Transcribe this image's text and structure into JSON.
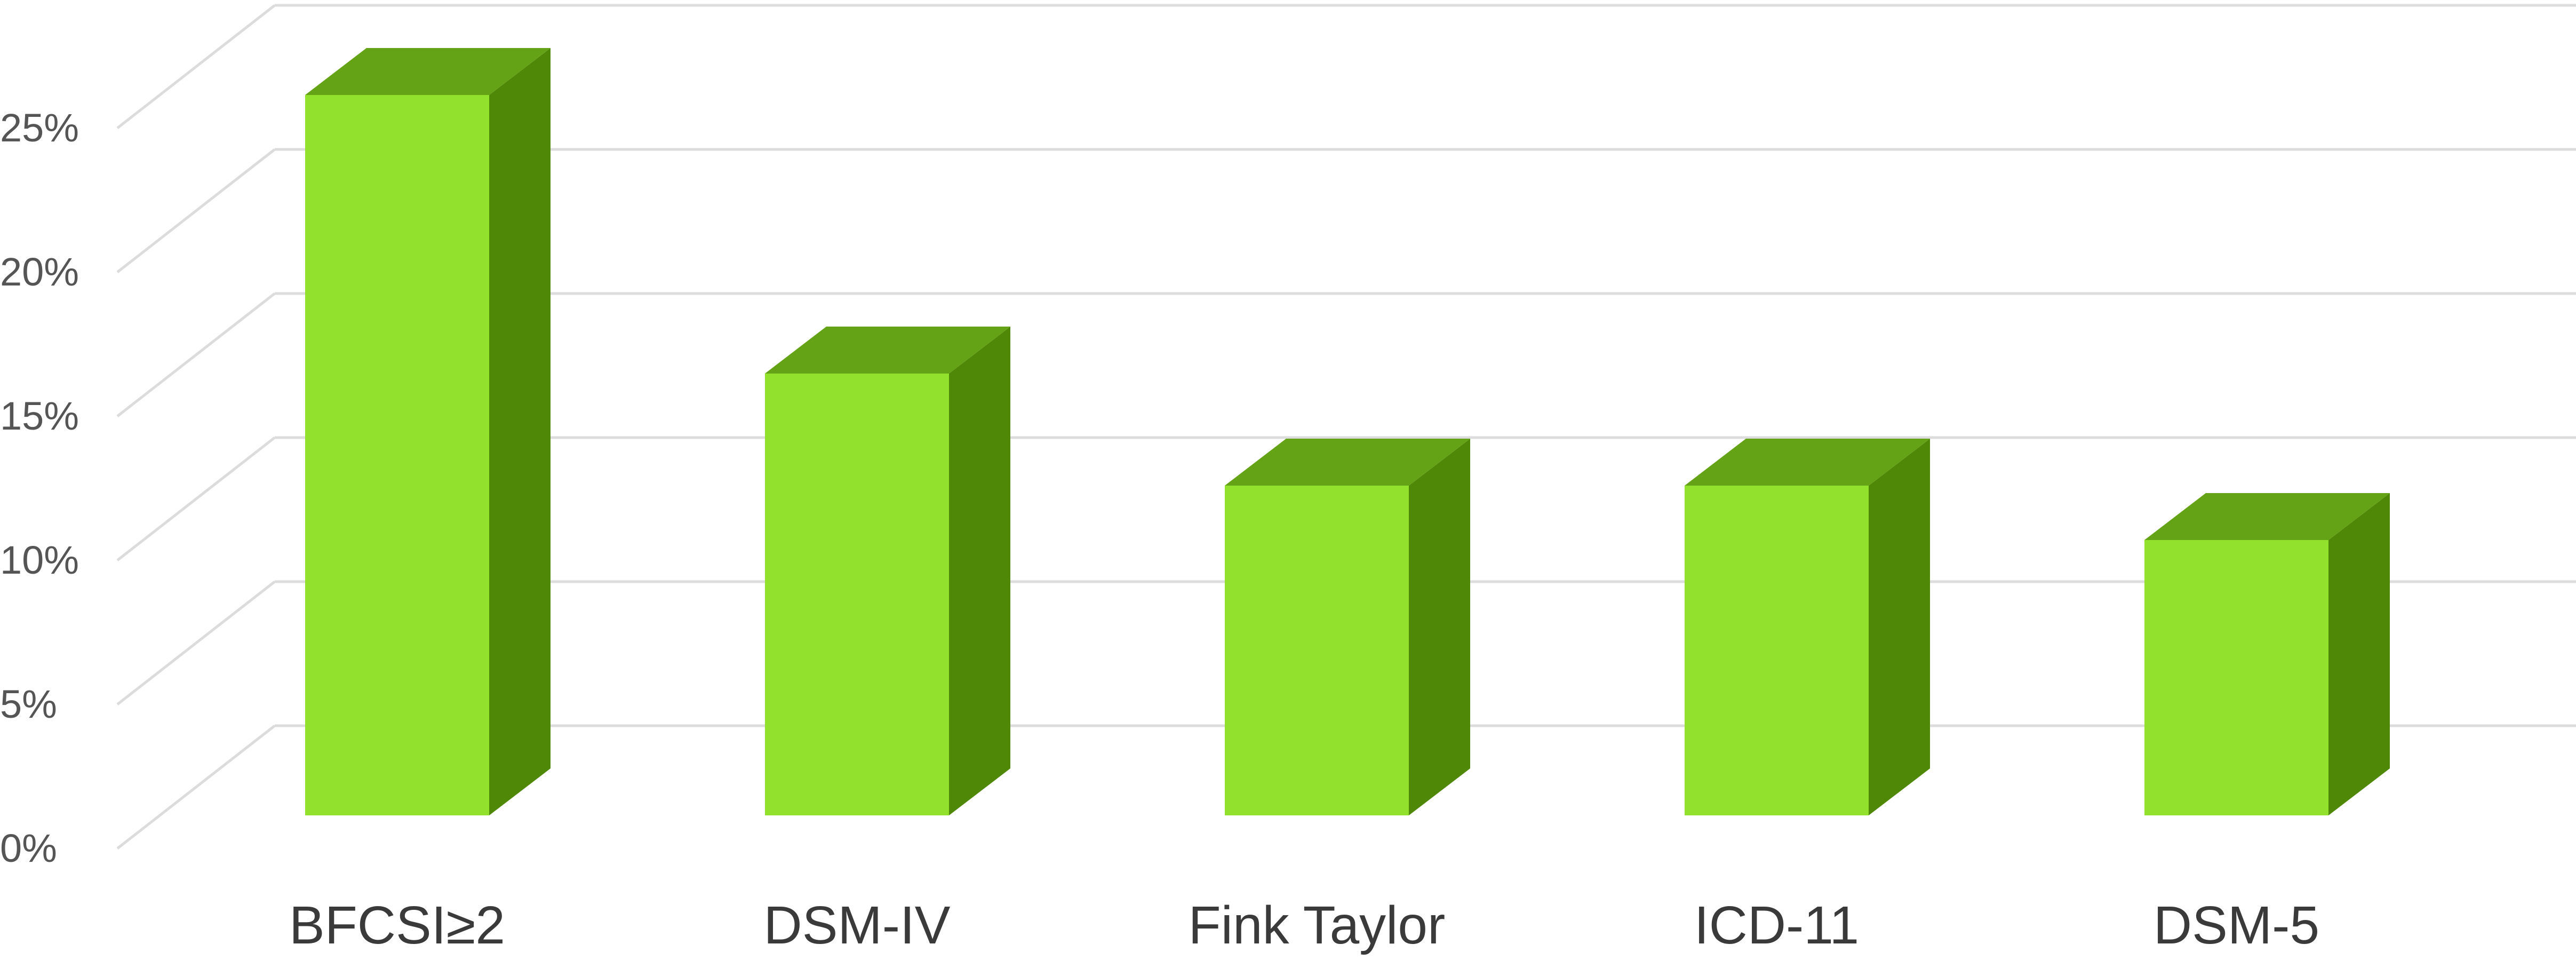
{
  "chart_data": {
    "type": "bar",
    "style": "3d-column",
    "categories": [
      "BFCSI≥2",
      "DSM-IV",
      "Fink Taylor",
      "ICD-11",
      "DSM-5"
    ],
    "series": [
      {
        "values": [
          22.5,
          13.8,
          10.3,
          10.3,
          8.6
        ]
      }
    ],
    "ylim": [
      0,
      25
    ],
    "yticks": [
      0,
      5,
      10,
      15,
      20,
      25
    ],
    "ytick_labels": [
      "0%",
      "5%",
      "10%",
      "15%",
      "20%",
      "25%"
    ],
    "grid": true,
    "colors": {
      "front": "#92e22d",
      "top": "#65a316",
      "side": "#4f8706",
      "grid": "#dcdcdc"
    }
  }
}
